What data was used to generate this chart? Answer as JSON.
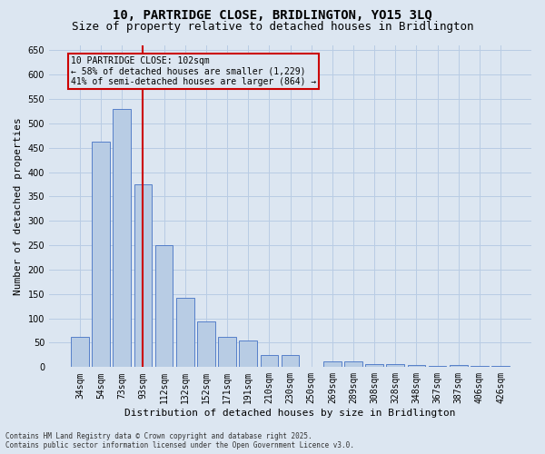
{
  "title": "10, PARTRIDGE CLOSE, BRIDLINGTON, YO15 3LQ",
  "subtitle": "Size of property relative to detached houses in Bridlington",
  "xlabel": "Distribution of detached houses by size in Bridlington",
  "ylabel": "Number of detached properties",
  "categories": [
    "34sqm",
    "54sqm",
    "73sqm",
    "93sqm",
    "112sqm",
    "132sqm",
    "152sqm",
    "171sqm",
    "191sqm",
    "210sqm",
    "230sqm",
    "250sqm",
    "269sqm",
    "289sqm",
    "308sqm",
    "328sqm",
    "348sqm",
    "367sqm",
    "387sqm",
    "406sqm",
    "426sqm"
  ],
  "values": [
    62,
    462,
    530,
    375,
    250,
    142,
    93,
    63,
    54,
    25,
    25,
    0,
    11,
    12,
    7,
    7,
    5,
    3,
    5,
    3,
    3
  ],
  "bar_color": "#b8cce4",
  "bar_edge_color": "#4472c4",
  "vline_x_index": 3,
  "vline_color": "#cc0000",
  "ylim": [
    0,
    660
  ],
  "yticks": [
    0,
    50,
    100,
    150,
    200,
    250,
    300,
    350,
    400,
    450,
    500,
    550,
    600,
    650
  ],
  "annotation_title": "10 PARTRIDGE CLOSE: 102sqm",
  "annotation_line1": "← 58% of detached houses are smaller (1,229)",
  "annotation_line2": "41% of semi-detached houses are larger (864) →",
  "annotation_box_color": "#cc0000",
  "annotation_text_color": "#000000",
  "footer_line1": "Contains HM Land Registry data © Crown copyright and database right 2025.",
  "footer_line2": "Contains public sector information licensed under the Open Government Licence v3.0.",
  "background_color": "#dce6f1",
  "plot_bg_color": "#dce6f1",
  "grid_color": "#b8cce4",
  "title_fontsize": 10,
  "subtitle_fontsize": 9,
  "xlabel_fontsize": 8,
  "ylabel_fontsize": 8,
  "tick_fontsize": 7,
  "annotation_fontsize": 7,
  "footer_fontsize": 5.5
}
